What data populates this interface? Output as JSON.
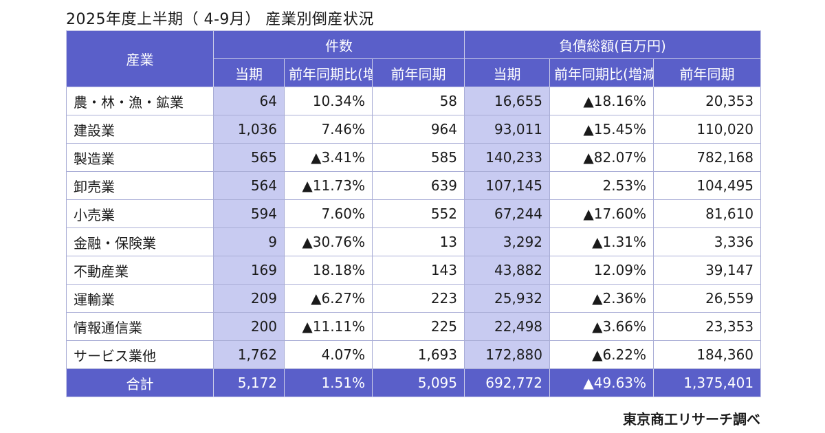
{
  "title": "2025年度上半期（ 4-9月） 産業別倒産状況",
  "headers": {
    "industry": "産業",
    "count_group": "件数",
    "debt_group": "負債総額(百万円)",
    "current": "当期",
    "yoy": "前年同期比(増減率)",
    "prev": "前年同期"
  },
  "rows": [
    {
      "industry": "農・林・漁・鉱業",
      "count": "64",
      "count_yoy": "10.34%",
      "count_prev": "58",
      "debt": "16,655",
      "debt_yoy": "▲18.16%",
      "debt_prev": "20,353"
    },
    {
      "industry": "建設業",
      "count": "1,036",
      "count_yoy": "7.46%",
      "count_prev": "964",
      "debt": "93,011",
      "debt_yoy": "▲15.45%",
      "debt_prev": "110,020"
    },
    {
      "industry": "製造業",
      "count": "565",
      "count_yoy": "▲3.41%",
      "count_prev": "585",
      "debt": "140,233",
      "debt_yoy": "▲82.07%",
      "debt_prev": "782,168"
    },
    {
      "industry": "卸売業",
      "count": "564",
      "count_yoy": "▲11.73%",
      "count_prev": "639",
      "debt": "107,145",
      "debt_yoy": "2.53%",
      "debt_prev": "104,495"
    },
    {
      "industry": "小売業",
      "count": "594",
      "count_yoy": "7.60%",
      "count_prev": "552",
      "debt": "67,244",
      "debt_yoy": "▲17.60%",
      "debt_prev": "81,610"
    },
    {
      "industry": "金融・保険業",
      "count": "9",
      "count_yoy": "▲30.76%",
      "count_prev": "13",
      "debt": "3,292",
      "debt_yoy": "▲1.31%",
      "debt_prev": "3,336"
    },
    {
      "industry": "不動産業",
      "count": "169",
      "count_yoy": "18.18%",
      "count_prev": "143",
      "debt": "43,882",
      "debt_yoy": "12.09%",
      "debt_prev": "39,147"
    },
    {
      "industry": "運輸業",
      "count": "209",
      "count_yoy": "▲6.27%",
      "count_prev": "223",
      "debt": "25,932",
      "debt_yoy": "▲2.36%",
      "debt_prev": "26,559"
    },
    {
      "industry": "情報通信業",
      "count": "200",
      "count_yoy": "▲11.11%",
      "count_prev": "225",
      "debt": "22,498",
      "debt_yoy": "▲3.66%",
      "debt_prev": "23,353"
    },
    {
      "industry": "サービス業他",
      "count": "1,762",
      "count_yoy": "4.07%",
      "count_prev": "1,693",
      "debt": "172,880",
      "debt_yoy": "▲6.22%",
      "debt_prev": "184,360"
    }
  ],
  "total": {
    "industry": "合計",
    "count": "5,172",
    "count_yoy": "1.51%",
    "count_prev": "5,095",
    "debt": "692,772",
    "debt_yoy": "▲49.63%",
    "debt_prev": "1,375,401"
  },
  "source": "東京商工リサーチ調べ",
  "colors": {
    "header_bg": "#5a5fc9",
    "current_col_bg": "#c8cbf1",
    "border": "#a9add6"
  }
}
